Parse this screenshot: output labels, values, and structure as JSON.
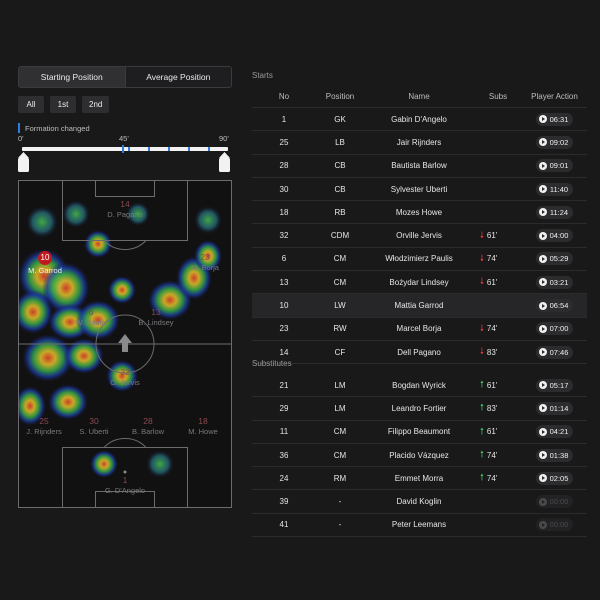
{
  "toggle": {
    "starting": "Starting Position",
    "average": "Average Position"
  },
  "filters": [
    {
      "label": "All"
    },
    {
      "label": "1st"
    },
    {
      "label": "2nd"
    }
  ],
  "formation_note": "Formation changed",
  "timeline": {
    "start": "0'",
    "mid": "45'",
    "end": "90'"
  },
  "pitch_markers": [
    {
      "num": "14",
      "name": "D. Pagano",
      "active": false
    },
    {
      "num": "10",
      "name": "M. Garrod",
      "active": true
    },
    {
      "num": "23",
      "name": "M. Borja",
      "active": false
    },
    {
      "num": "6",
      "name": "W. Paulis",
      "active": false
    },
    {
      "num": "13",
      "name": "B. Lindsey",
      "active": false
    },
    {
      "num": "32",
      "name": "O. Jervis",
      "active": false
    },
    {
      "num": "25",
      "name": "J. Rijnders",
      "active": false
    },
    {
      "num": "30",
      "name": "S. Uberti",
      "active": false
    },
    {
      "num": "28",
      "name": "B. Barlow",
      "active": false
    },
    {
      "num": "18",
      "name": "M. Howe",
      "active": false
    },
    {
      "num": "1",
      "name": "G. D'Angelo",
      "active": false
    }
  ],
  "starts_label": "Starts",
  "subs_label": "Substitutes",
  "columns": [
    "No",
    "Position",
    "Name",
    "Subs",
    "Player Action"
  ],
  "starters": [
    {
      "no": "1",
      "pos": "GK",
      "name": "Gabin D'Angelo",
      "sub": "",
      "dir": "",
      "time": "06:31",
      "enabled": true
    },
    {
      "no": "25",
      "pos": "LB",
      "name": "Jair Rijnders",
      "sub": "",
      "dir": "",
      "time": "09:02",
      "enabled": true
    },
    {
      "no": "28",
      "pos": "CB",
      "name": "Bautista Barlow",
      "sub": "",
      "dir": "",
      "time": "09:01",
      "enabled": true
    },
    {
      "no": "30",
      "pos": "CB",
      "name": "Sylvester Uberti",
      "sub": "",
      "dir": "",
      "time": "11:40",
      "enabled": true
    },
    {
      "no": "18",
      "pos": "RB",
      "name": "Mozes Howe",
      "sub": "",
      "dir": "",
      "time": "11:24",
      "enabled": true
    },
    {
      "no": "32",
      "pos": "CDM",
      "name": "Orville Jervis",
      "sub": "61'",
      "dir": "down",
      "time": "04:00",
      "enabled": true
    },
    {
      "no": "6",
      "pos": "CM",
      "name": "Włodzimierz Paulis",
      "sub": "74'",
      "dir": "down",
      "time": "05:29",
      "enabled": true
    },
    {
      "no": "13",
      "pos": "CM",
      "name": "Bożydar Lindsey",
      "sub": "61'",
      "dir": "down",
      "time": "03:21",
      "enabled": true
    },
    {
      "no": "10",
      "pos": "LW",
      "name": "Mattia Garrod",
      "sub": "",
      "dir": "",
      "time": "06:54",
      "enabled": true,
      "highlight": true
    },
    {
      "no": "23",
      "pos": "RW",
      "name": "Marcel Borja",
      "sub": "74'",
      "dir": "down",
      "time": "07:00",
      "enabled": true
    },
    {
      "no": "14",
      "pos": "CF",
      "name": "Dell Pagano",
      "sub": "83'",
      "dir": "down",
      "time": "07:46",
      "enabled": true
    }
  ],
  "substitutes": [
    {
      "no": "21",
      "pos": "LM",
      "name": "Bogdan Wyrick",
      "sub": "61'",
      "dir": "up",
      "time": "05:17",
      "enabled": true
    },
    {
      "no": "29",
      "pos": "LM",
      "name": "Leandro Fortier",
      "sub": "83'",
      "dir": "up",
      "time": "01:14",
      "enabled": true
    },
    {
      "no": "11",
      "pos": "CM",
      "name": "Filippo Beaumont",
      "sub": "61'",
      "dir": "up",
      "time": "04:21",
      "enabled": true
    },
    {
      "no": "36",
      "pos": "CM",
      "name": "Placido Vázquez",
      "sub": "74'",
      "dir": "up",
      "time": "01:38",
      "enabled": true
    },
    {
      "no": "24",
      "pos": "RM",
      "name": "Emmet Morra",
      "sub": "74'",
      "dir": "up",
      "time": "02:05",
      "enabled": true
    },
    {
      "no": "39",
      "pos": "-",
      "name": "David Koglin",
      "sub": "",
      "dir": "",
      "time": "00:00",
      "enabled": false
    },
    {
      "no": "41",
      "pos": "-",
      "name": "Peter Leemans",
      "sub": "",
      "dir": "",
      "time": "00:00",
      "enabled": false
    }
  ]
}
